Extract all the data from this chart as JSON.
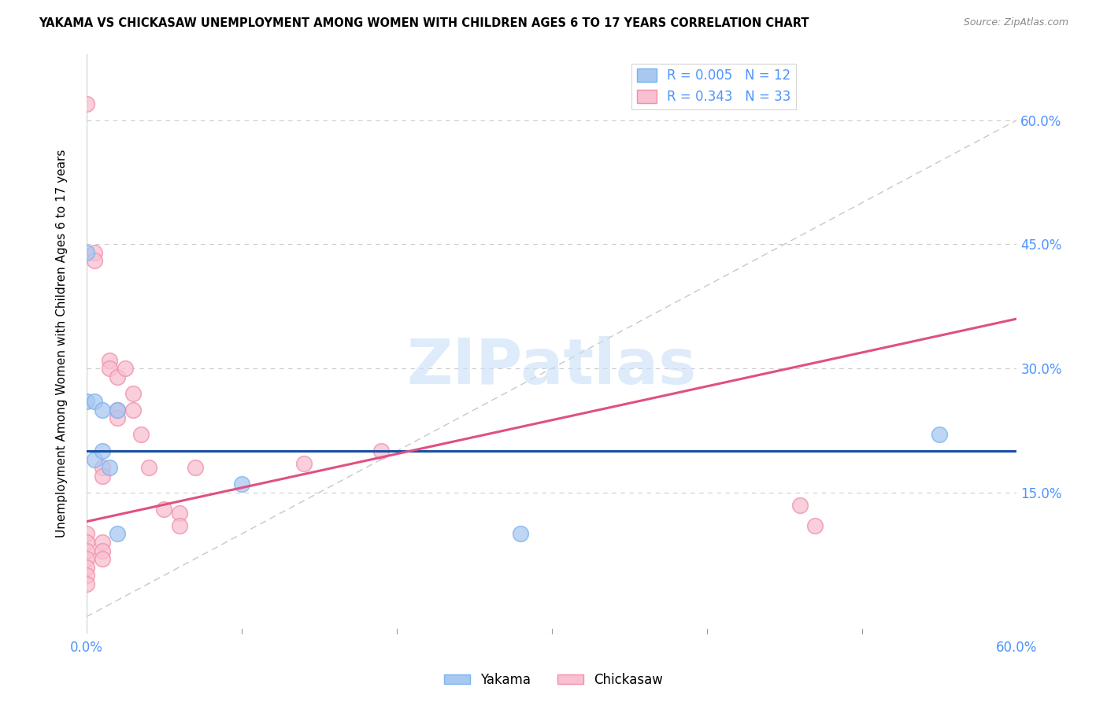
{
  "title": "YAKAMA VS CHICKASAW UNEMPLOYMENT AMONG WOMEN WITH CHILDREN AGES 6 TO 17 YEARS CORRELATION CHART",
  "source": "Source: ZipAtlas.com",
  "tick_color": "#4d94ff",
  "ylabel": "Unemployment Among Women with Children Ages 6 to 17 years",
  "xlim": [
    0.0,
    0.6
  ],
  "ylim": [
    -0.02,
    0.68
  ],
  "yticks": [
    0.0,
    0.15,
    0.3,
    0.45,
    0.6
  ],
  "ytick_labels": [
    "",
    "15.0%",
    "30.0%",
    "45.0%",
    "60.0%"
  ],
  "xticks": [
    0.0,
    0.1,
    0.2,
    0.3,
    0.4,
    0.5,
    0.6
  ],
  "xtick_labels": [
    "0.0%",
    "",
    "",
    "",
    "",
    "",
    "60.0%"
  ],
  "yakama_R": 0.005,
  "yakama_N": 12,
  "chickasaw_R": 0.343,
  "chickasaw_N": 33,
  "yakama_fill": "#a8c8f0",
  "yakama_edge": "#7ab3ef",
  "chickasaw_fill": "#f8c0d0",
  "chickasaw_edge": "#f090aa",
  "yakama_line_color": "#1a4fa0",
  "chickasaw_line_color": "#e05080",
  "diagonal_color": "#c8c8c8",
  "grid_color": "#cccccc",
  "watermark_color": "#c8dff8",
  "yakama_x": [
    0.0,
    0.0,
    0.005,
    0.005,
    0.01,
    0.01,
    0.015,
    0.02,
    0.02,
    0.1,
    0.28,
    0.55
  ],
  "yakama_y": [
    0.44,
    0.26,
    0.26,
    0.19,
    0.25,
    0.2,
    0.18,
    0.25,
    0.1,
    0.16,
    0.1,
    0.22
  ],
  "chickasaw_x": [
    0.0,
    0.0,
    0.0,
    0.0,
    0.0,
    0.0,
    0.0,
    0.0,
    0.005,
    0.005,
    0.01,
    0.01,
    0.01,
    0.01,
    0.01,
    0.015,
    0.015,
    0.02,
    0.02,
    0.02,
    0.025,
    0.03,
    0.03,
    0.035,
    0.04,
    0.05,
    0.06,
    0.06,
    0.07,
    0.14,
    0.19,
    0.46,
    0.47
  ],
  "chickasaw_y": [
    0.1,
    0.09,
    0.08,
    0.07,
    0.06,
    0.05,
    0.04,
    0.62,
    0.44,
    0.43,
    0.18,
    0.17,
    0.09,
    0.08,
    0.07,
    0.31,
    0.3,
    0.29,
    0.25,
    0.24,
    0.3,
    0.27,
    0.25,
    0.22,
    0.18,
    0.13,
    0.125,
    0.11,
    0.18,
    0.185,
    0.2,
    0.135,
    0.11
  ],
  "yakama_line_y": 0.2,
  "chickasaw_line_x0": 0.0,
  "chickasaw_line_y0": 0.115,
  "chickasaw_line_x1": 0.6,
  "chickasaw_line_y1": 0.36
}
